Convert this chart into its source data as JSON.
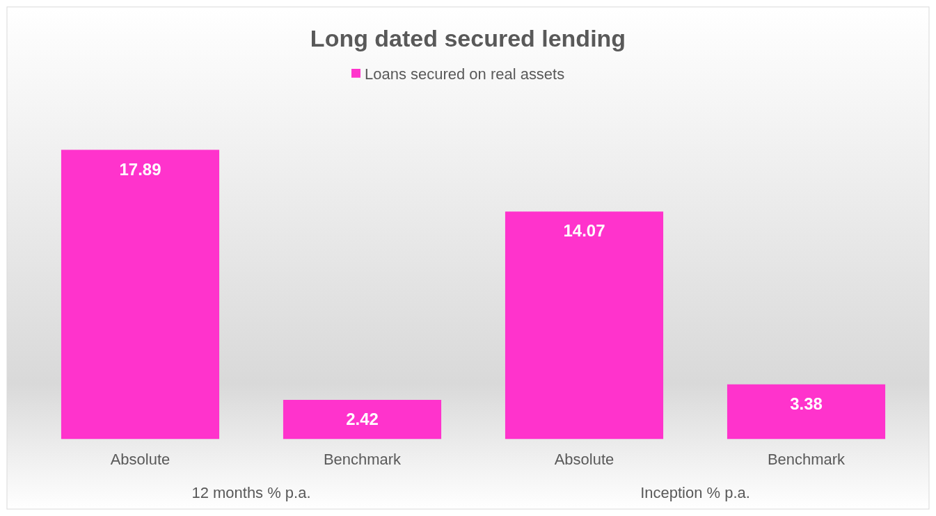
{
  "chart_data": {
    "type": "bar",
    "title": "Long dated secured lending",
    "categories": [
      "Absolute",
      "Benchmark",
      "Absolute",
      "Benchmark"
    ],
    "series": [
      {
        "name": "Loans secured on real assets",
        "color": "#ff33cc",
        "values": [
          17.89,
          2.42,
          14.07,
          3.38
        ]
      }
    ],
    "data_labels": true,
    "legend": "top",
    "grid": false,
    "annotations": [
      "12 months % p.a.",
      "Inception % p.a."
    ]
  }
}
